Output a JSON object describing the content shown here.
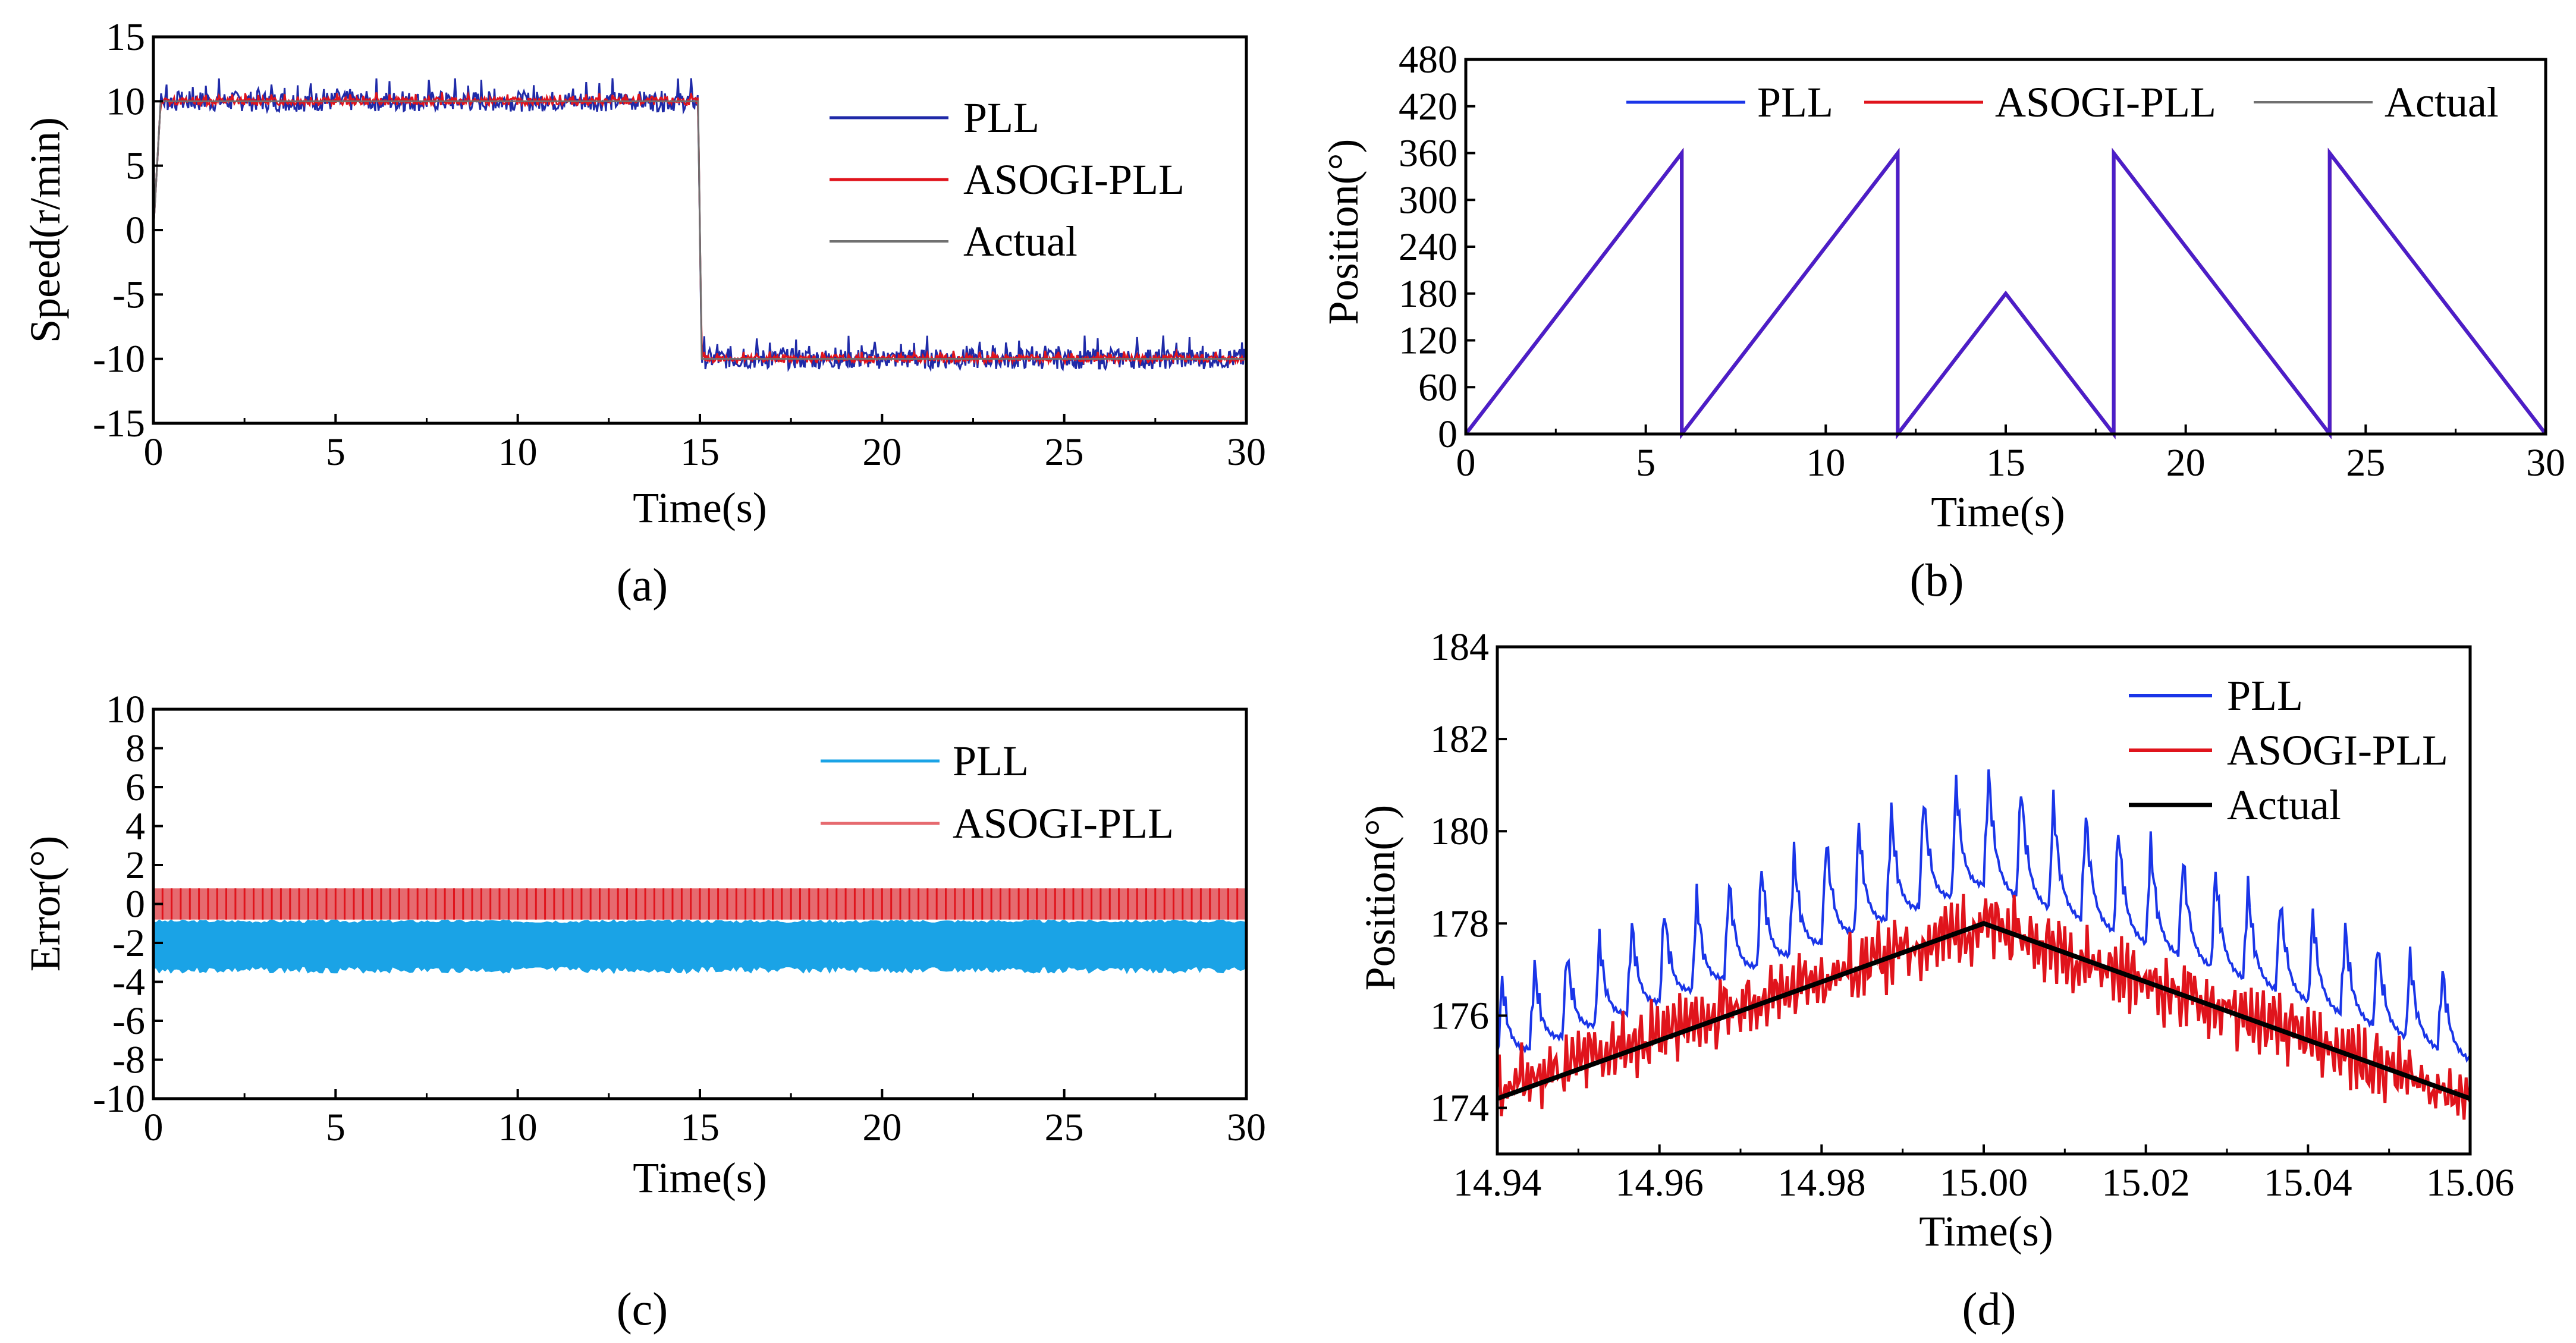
{
  "colors": {
    "pll_dark": "#1f2aa8",
    "pll_blue": "#1a35e8",
    "pll_cyan": "#1aa3e6",
    "asogi_red": "#e0141c",
    "asogi_light": "#e66a6f",
    "actual_gray": "#707070",
    "actual_black": "#000000",
    "purple": "#4b1ec8"
  },
  "chart_data": [
    {
      "id": "a",
      "type": "line",
      "caption": "(a)",
      "xlabel": "Time(s)",
      "ylabel": "Speed(r/min)",
      "xlim": [
        0,
        30
      ],
      "ylim": [
        -15,
        15
      ],
      "xticks": [
        "0",
        "5",
        "10",
        "15",
        "20",
        "25",
        "30"
      ],
      "yticks": [
        "-15",
        "-10",
        "-5",
        "0",
        "5",
        "10",
        "15"
      ],
      "series": [
        {
          "name": "PLL",
          "x": [
            0,
            0.2,
            14.95,
            15.05,
            30
          ],
          "y": [
            0,
            10,
            10,
            -10,
            -10
          ],
          "noise": 0.8
        },
        {
          "name": "ASOGI-PLL",
          "x": [
            0,
            0.2,
            14.95,
            15.05,
            30
          ],
          "y": [
            0,
            10,
            10,
            -10,
            -10
          ],
          "noise": 0.3
        },
        {
          "name": "Actual",
          "x": [
            0,
            0.2,
            14.95,
            15.05,
            30
          ],
          "y": [
            0,
            10,
            10,
            -10,
            -10
          ],
          "noise": 0
        }
      ]
    },
    {
      "id": "b",
      "type": "line",
      "caption": "(b)",
      "xlabel": "Time(s)",
      "ylabel": "Position(°)",
      "xlim": [
        0,
        30
      ],
      "ylim": [
        0,
        480
      ],
      "xticks": [
        "0",
        "5",
        "10",
        "15",
        "20",
        "25",
        "30"
      ],
      "yticks": [
        "0",
        "60",
        "120",
        "180",
        "240",
        "300",
        "360",
        "420",
        "480"
      ],
      "series": [
        {
          "name": "PLL",
          "x": [
            0,
            6,
            6,
            12,
            12,
            15,
            18,
            18,
            24,
            24,
            30
          ],
          "y": [
            0,
            360,
            0,
            360,
            0,
            180,
            0,
            360,
            0,
            360,
            0
          ]
        },
        {
          "name": "ASOGI-PLL",
          "x": [
            0,
            6,
            6,
            12,
            12,
            15,
            18,
            18,
            24,
            24,
            30
          ],
          "y": [
            0,
            360,
            0,
            360,
            0,
            180,
            0,
            360,
            0,
            360,
            0
          ]
        },
        {
          "name": "Actual",
          "x": [
            0,
            6,
            6,
            12,
            12,
            15,
            18,
            18,
            24,
            24,
            30
          ],
          "y": [
            0,
            360,
            0,
            360,
            0,
            180,
            0,
            360,
            0,
            360,
            0
          ]
        }
      ]
    },
    {
      "id": "c",
      "type": "area",
      "caption": "(c)",
      "xlabel": "Time(s)",
      "ylabel": "Error(°)",
      "xlim": [
        0,
        30
      ],
      "ylim": [
        -10,
        10
      ],
      "xticks": [
        "0",
        "5",
        "10",
        "15",
        "20",
        "25",
        "30"
      ],
      "yticks": [
        "-10",
        "-8",
        "-6",
        "-4",
        "-2",
        "0",
        "2",
        "4",
        "6",
        "8",
        "10"
      ],
      "series": [
        {
          "name": "PLL",
          "x": [
            0,
            30
          ],
          "upper": [
            -1,
            -1
          ],
          "lower": [
            -3.2,
            -3.2
          ]
        },
        {
          "name": "ASOGI-PLL",
          "x": [
            0,
            30
          ],
          "upper": [
            0.8,
            0.8
          ],
          "lower": [
            -0.8,
            -0.8
          ]
        }
      ]
    },
    {
      "id": "d",
      "type": "line",
      "caption": "(d)",
      "xlabel": "Time(s)",
      "ylabel": "Position(°)",
      "xlim": [
        14.94,
        15.06
      ],
      "ylim": [
        173,
        184
      ],
      "xticks": [
        "14.94",
        "14.96",
        "14.98",
        "15.00",
        "15.02",
        "15.04",
        "15.06"
      ],
      "yticks": [
        "174",
        "176",
        "178",
        "180",
        "182",
        "184"
      ],
      "series": [
        {
          "name": "PLL",
          "x": [
            14.94,
            15.0,
            15.06
          ],
          "y": [
            175.5,
            179.5,
            175.5
          ],
          "ripple_period": 0.004,
          "ripple_amp": 2.3
        },
        {
          "name": "ASOGI-PLL",
          "x": [
            14.94,
            15.0,
            15.06
          ],
          "y": [
            174.4,
            178,
            174.2
          ],
          "ripple_amp": 0.8
        },
        {
          "name": "Actual",
          "x": [
            14.94,
            15.0,
            15.06
          ],
          "y": [
            174.2,
            178,
            174.2
          ]
        }
      ]
    }
  ]
}
